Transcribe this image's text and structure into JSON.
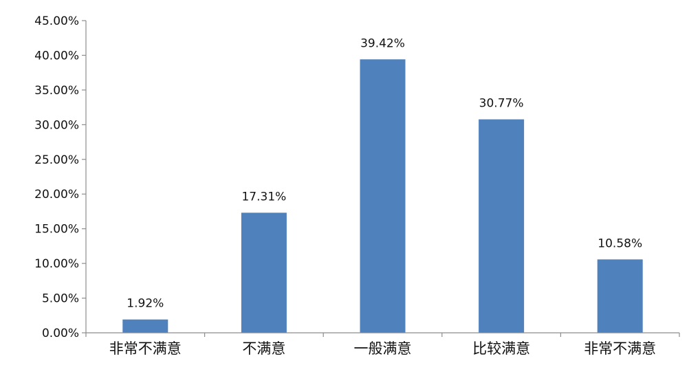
{
  "chart_data": {
    "type": "bar",
    "categories": [
      "非常不满意",
      "不满意",
      "一般满意",
      "比较满意",
      "非常不满意"
    ],
    "values": [
      1.92,
      17.31,
      39.42,
      30.77,
      10.58
    ],
    "data_labels": [
      "1.92%",
      "17.31%",
      "39.42%",
      "30.77%",
      "10.58%"
    ],
    "ylim": [
      0,
      45
    ],
    "yticks": [
      0,
      5,
      10,
      15,
      20,
      25,
      30,
      35,
      40,
      45
    ],
    "ytick_labels": [
      "0.00%",
      "5.00%",
      "10.00%",
      "15.00%",
      "20.00%",
      "25.00%",
      "30.00%",
      "35.00%",
      "40.00%",
      "45.00%"
    ],
    "grid": false,
    "legend": "none",
    "bar_color": "#4f81bd",
    "axis_color": "#8c8c8c",
    "title": "",
    "xlabel": "",
    "ylabel": ""
  }
}
